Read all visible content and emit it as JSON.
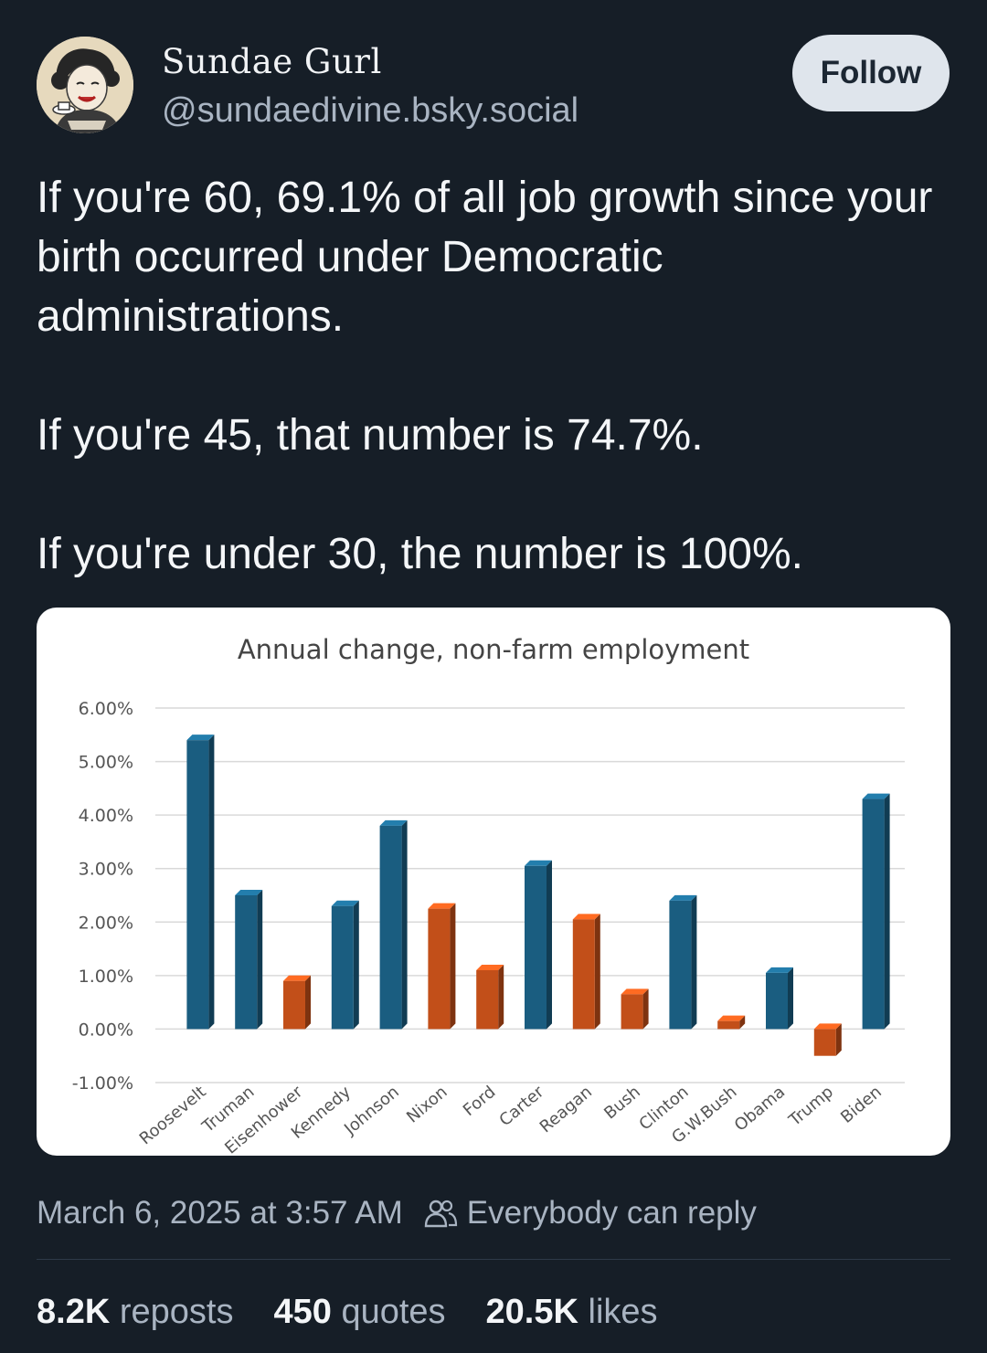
{
  "author": {
    "display_name": "Sundae Gurl",
    "handle": "@sundaedivine.bsky.social",
    "avatar_icon": "retro-woman-avatar"
  },
  "follow_label": "Follow",
  "post": {
    "paragraphs": [
      "If you're 60, 69.1% of all job growth since your birth occurred under Democratic administrations.",
      "If you're 45, that number is 74.7%.",
      "If you're under 30, the number is 100%."
    ]
  },
  "chart_data": {
    "type": "bar",
    "title": "Annual change, non-farm employment",
    "categories": [
      "Roosevelt",
      "Truman",
      "Eisenhower",
      "Kennedy",
      "Johnson",
      "Nixon",
      "Ford",
      "Carter",
      "Reagan",
      "Bush",
      "Clinton",
      "G.W.Bush",
      "Obama",
      "Trump",
      "Biden"
    ],
    "values": [
      5.4,
      2.5,
      0.9,
      2.3,
      3.8,
      2.25,
      1.1,
      3.05,
      2.05,
      0.65,
      2.4,
      0.15,
      1.05,
      -0.5,
      4.3
    ],
    "party": [
      "D",
      "D",
      "R",
      "D",
      "D",
      "R",
      "R",
      "D",
      "R",
      "R",
      "D",
      "R",
      "D",
      "R",
      "D"
    ],
    "colors": {
      "D": "#1a5d80",
      "R": "#c24f19"
    },
    "ytick_labels": [
      "6.00%",
      "5.00%",
      "4.00%",
      "3.00%",
      "2.00%",
      "1.00%",
      "0.00%",
      "-1.00%"
    ],
    "ylim": [
      -1,
      6
    ],
    "grid": true,
    "legend": "none"
  },
  "meta": {
    "timestamp": "March 6, 2025 at 3:57 AM",
    "reply_setting": "Everybody can reply",
    "reply_icon": "people-icon"
  },
  "stats": {
    "reposts": {
      "count": "8.2K",
      "label": "reposts"
    },
    "quotes": {
      "count": "450",
      "label": "quotes"
    },
    "likes": {
      "count": "20.5K",
      "label": "likes"
    }
  }
}
